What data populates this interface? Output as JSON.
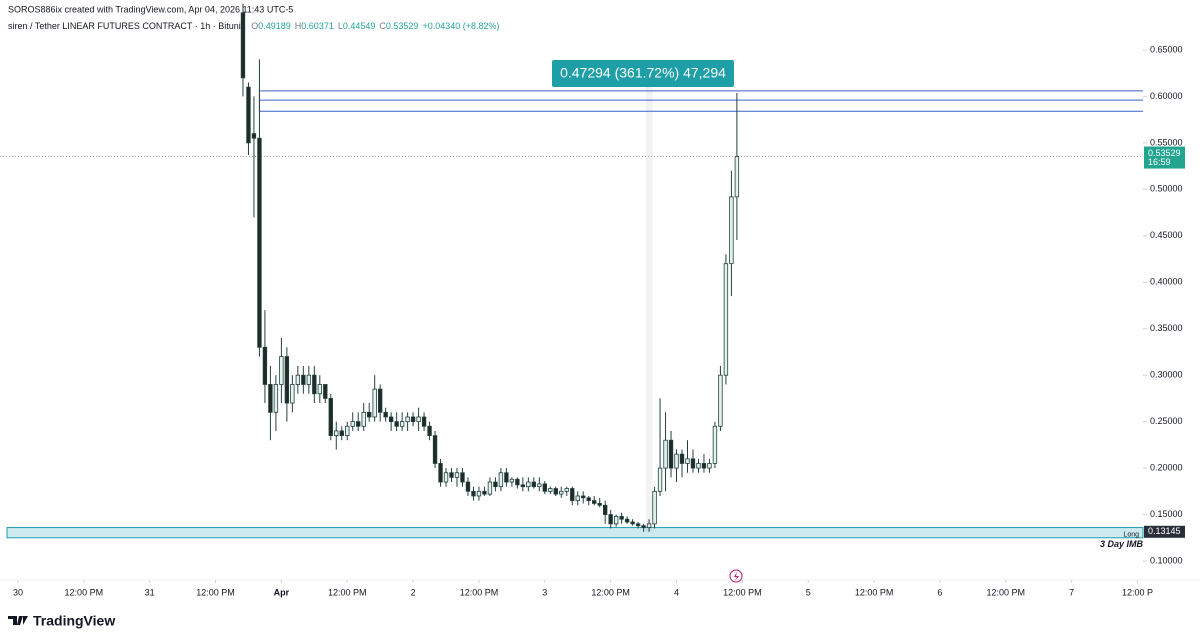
{
  "header": {
    "credit": "SOROS886ix created with TradingView.com, Apr 04, 2026 11:43 UTC-5"
  },
  "footer": {
    "brand": "TradingView"
  },
  "chart_data": {
    "type": "candlestick",
    "title": "siren / Tether LINEAR FUTURES CONTRACT · 1h · Bitunix",
    "ohlc_labels": [
      "O",
      "H",
      "L",
      "C"
    ],
    "ohlc_values": [
      0.49189,
      0.60371,
      0.44549,
      0.53529
    ],
    "change": "+0.04340 (+8.82%)",
    "x": [
      41,
      42,
      43,
      44,
      45,
      46,
      47,
      48,
      49,
      50,
      51,
      52,
      53,
      54,
      55,
      56,
      57,
      58,
      59,
      60,
      61,
      62,
      63,
      64,
      65,
      66,
      67,
      68,
      69,
      70,
      71,
      72,
      73,
      74,
      75,
      76,
      77,
      78,
      79,
      80,
      81,
      82,
      83,
      84,
      85,
      86,
      87,
      88,
      89,
      90,
      91,
      92,
      93,
      94,
      95,
      96,
      97,
      98,
      99,
      100,
      101,
      102,
      103,
      104,
      105,
      106,
      107,
      108,
      109,
      110,
      111,
      112,
      113,
      114,
      115,
      116,
      117,
      118,
      119,
      120,
      121,
      122,
      123,
      124,
      125,
      126,
      127,
      128,
      129,
      130,
      131
    ],
    "open": [
      0.69,
      0.61,
      0.56,
      0.555,
      0.33,
      0.29,
      0.26,
      0.29,
      0.32,
      0.27,
      0.29,
      0.3,
      0.29,
      0.3,
      0.28,
      0.29,
      0.275,
      0.235,
      0.24,
      0.235,
      0.245,
      0.25,
      0.245,
      0.26,
      0.255,
      0.285,
      0.26,
      0.255,
      0.25,
      0.245,
      0.25,
      0.255,
      0.25,
      0.255,
      0.245,
      0.235,
      0.205,
      0.185,
      0.195,
      0.19,
      0.195,
      0.185,
      0.175,
      0.17,
      0.175,
      0.172,
      0.185,
      0.18,
      0.195,
      0.185,
      0.188,
      0.182,
      0.18,
      0.185,
      0.18,
      0.183,
      0.175,
      0.178,
      0.172,
      0.175,
      0.178,
      0.165,
      0.17,
      0.168,
      0.165,
      0.162,
      0.16,
      0.15,
      0.14,
      0.148,
      0.145,
      0.142,
      0.14,
      0.138,
      0.136,
      0.14,
      0.175,
      0.2,
      0.23,
      0.2,
      0.215,
      0.205,
      0.21,
      0.2,
      0.205,
      0.2,
      0.205,
      0.245,
      0.3,
      0.42,
      0.49189
    ],
    "high": [
      0.7,
      0.615,
      0.6,
      0.64,
      0.37,
      0.31,
      0.3,
      0.34,
      0.33,
      0.3,
      0.31,
      0.31,
      0.31,
      0.31,
      0.3,
      0.29,
      0.28,
      0.25,
      0.245,
      0.25,
      0.26,
      0.26,
      0.27,
      0.27,
      0.3,
      0.29,
      0.265,
      0.26,
      0.26,
      0.26,
      0.26,
      0.26,
      0.265,
      0.26,
      0.25,
      0.24,
      0.21,
      0.2,
      0.2,
      0.2,
      0.2,
      0.19,
      0.18,
      0.18,
      0.18,
      0.19,
      0.19,
      0.2,
      0.2,
      0.19,
      0.19,
      0.19,
      0.19,
      0.19,
      0.19,
      0.186,
      0.18,
      0.18,
      0.18,
      0.18,
      0.18,
      0.175,
      0.175,
      0.17,
      0.17,
      0.168,
      0.165,
      0.155,
      0.15,
      0.152,
      0.148,
      0.145,
      0.142,
      0.14,
      0.145,
      0.18,
      0.275,
      0.26,
      0.24,
      0.22,
      0.22,
      0.23,
      0.22,
      0.21,
      0.215,
      0.21,
      0.25,
      0.31,
      0.43,
      0.52,
      0.60371
    ],
    "low": [
      0.6,
      0.537,
      0.47,
      0.32,
      0.27,
      0.23,
      0.24,
      0.27,
      0.25,
      0.26,
      0.28,
      0.28,
      0.28,
      0.27,
      0.27,
      0.27,
      0.23,
      0.22,
      0.23,
      0.23,
      0.24,
      0.24,
      0.24,
      0.25,
      0.25,
      0.25,
      0.25,
      0.24,
      0.24,
      0.24,
      0.24,
      0.245,
      0.24,
      0.24,
      0.23,
      0.2,
      0.18,
      0.18,
      0.185,
      0.18,
      0.18,
      0.17,
      0.165,
      0.165,
      0.17,
      0.17,
      0.175,
      0.175,
      0.18,
      0.18,
      0.178,
      0.175,
      0.175,
      0.178,
      0.175,
      0.172,
      0.172,
      0.17,
      0.168,
      0.17,
      0.16,
      0.16,
      0.162,
      0.16,
      0.16,
      0.158,
      0.14,
      0.135,
      0.137,
      0.14,
      0.14,
      0.138,
      0.135,
      0.1315,
      0.1315,
      0.135,
      0.17,
      0.175,
      0.19,
      0.185,
      0.19,
      0.195,
      0.195,
      0.195,
      0.195,
      0.195,
      0.2,
      0.24,
      0.29,
      0.385,
      0.44549
    ],
    "close": [
      0.62,
      0.55,
      0.555,
      0.33,
      0.29,
      0.26,
      0.29,
      0.32,
      0.27,
      0.29,
      0.3,
      0.29,
      0.3,
      0.28,
      0.29,
      0.275,
      0.235,
      0.24,
      0.235,
      0.245,
      0.25,
      0.245,
      0.26,
      0.255,
      0.285,
      0.26,
      0.255,
      0.25,
      0.245,
      0.25,
      0.255,
      0.25,
      0.255,
      0.245,
      0.235,
      0.205,
      0.185,
      0.195,
      0.19,
      0.195,
      0.185,
      0.175,
      0.17,
      0.175,
      0.172,
      0.185,
      0.18,
      0.195,
      0.185,
      0.188,
      0.182,
      0.18,
      0.185,
      0.18,
      0.183,
      0.175,
      0.178,
      0.172,
      0.175,
      0.178,
      0.165,
      0.17,
      0.168,
      0.165,
      0.162,
      0.16,
      0.15,
      0.14,
      0.148,
      0.145,
      0.142,
      0.14,
      0.138,
      0.136,
      0.14,
      0.175,
      0.2,
      0.23,
      0.2,
      0.215,
      0.205,
      0.21,
      0.2,
      0.205,
      0.2,
      0.205,
      0.245,
      0.3,
      0.42,
      0.49189,
      0.53529
    ],
    "up_color": "#e3f4f0",
    "down_color": "#1f2b29",
    "xlim": [
      -3,
      205
    ],
    "xticks": [
      {
        "value": 0,
        "label": "30"
      },
      {
        "value": 12,
        "label": "12:00 PM"
      },
      {
        "value": 24,
        "label": "31"
      },
      {
        "value": 36,
        "label": "12:00 PM"
      },
      {
        "value": 48,
        "label": "Apr"
      },
      {
        "value": 60,
        "label": "12:00 PM"
      },
      {
        "value": 72,
        "label": "2"
      },
      {
        "value": 84,
        "label": "12:00 PM"
      },
      {
        "value": 96,
        "label": "3"
      },
      {
        "value": 108,
        "label": "12:00 PM"
      },
      {
        "value": 120,
        "label": "4"
      },
      {
        "value": 132,
        "label": "12:00 PM"
      },
      {
        "value": 144,
        "label": "5"
      },
      {
        "value": 156,
        "label": "12:00 PM"
      },
      {
        "value": 168,
        "label": "6"
      },
      {
        "value": 180,
        "label": "12:00 PM"
      },
      {
        "value": 192,
        "label": "7"
      },
      {
        "value": 204,
        "label": "12:00 P"
      }
    ],
    "ylim": [
      0.08,
      0.7
    ],
    "yticks": [
      {
        "value": 0.1,
        "label": "0.10000"
      },
      {
        "value": 0.15,
        "label": "0.15000"
      },
      {
        "value": 0.2,
        "label": "0.20000"
      },
      {
        "value": 0.25,
        "label": "0.25000"
      },
      {
        "value": 0.3,
        "label": "0.30000"
      },
      {
        "value": 0.35,
        "label": "0.35000"
      },
      {
        "value": 0.4,
        "label": "0.40000"
      },
      {
        "value": 0.45,
        "label": "0.45000"
      },
      {
        "value": 0.5,
        "label": "0.50000"
      },
      {
        "value": 0.55,
        "label": "0.55000"
      },
      {
        "value": 0.6,
        "label": "0.60000"
      },
      {
        "value": 0.65,
        "label": "0.65000"
      }
    ],
    "grid": false,
    "levels": [
      0.606,
      0.596,
      0.584
    ],
    "level_color": "#3d63c9",
    "zone": [
      0.125,
      0.136
    ],
    "zone_color": "#1a9fb3",
    "zone_labels": [
      "Long",
      "3 Day IMB"
    ],
    "measure_label": "0.47294 (361.72%) 47,294",
    "measure_x": [
      114,
      116
    ],
    "last_price": 0.53529,
    "countdown": "16:59",
    "low_price": 0.13145
  }
}
